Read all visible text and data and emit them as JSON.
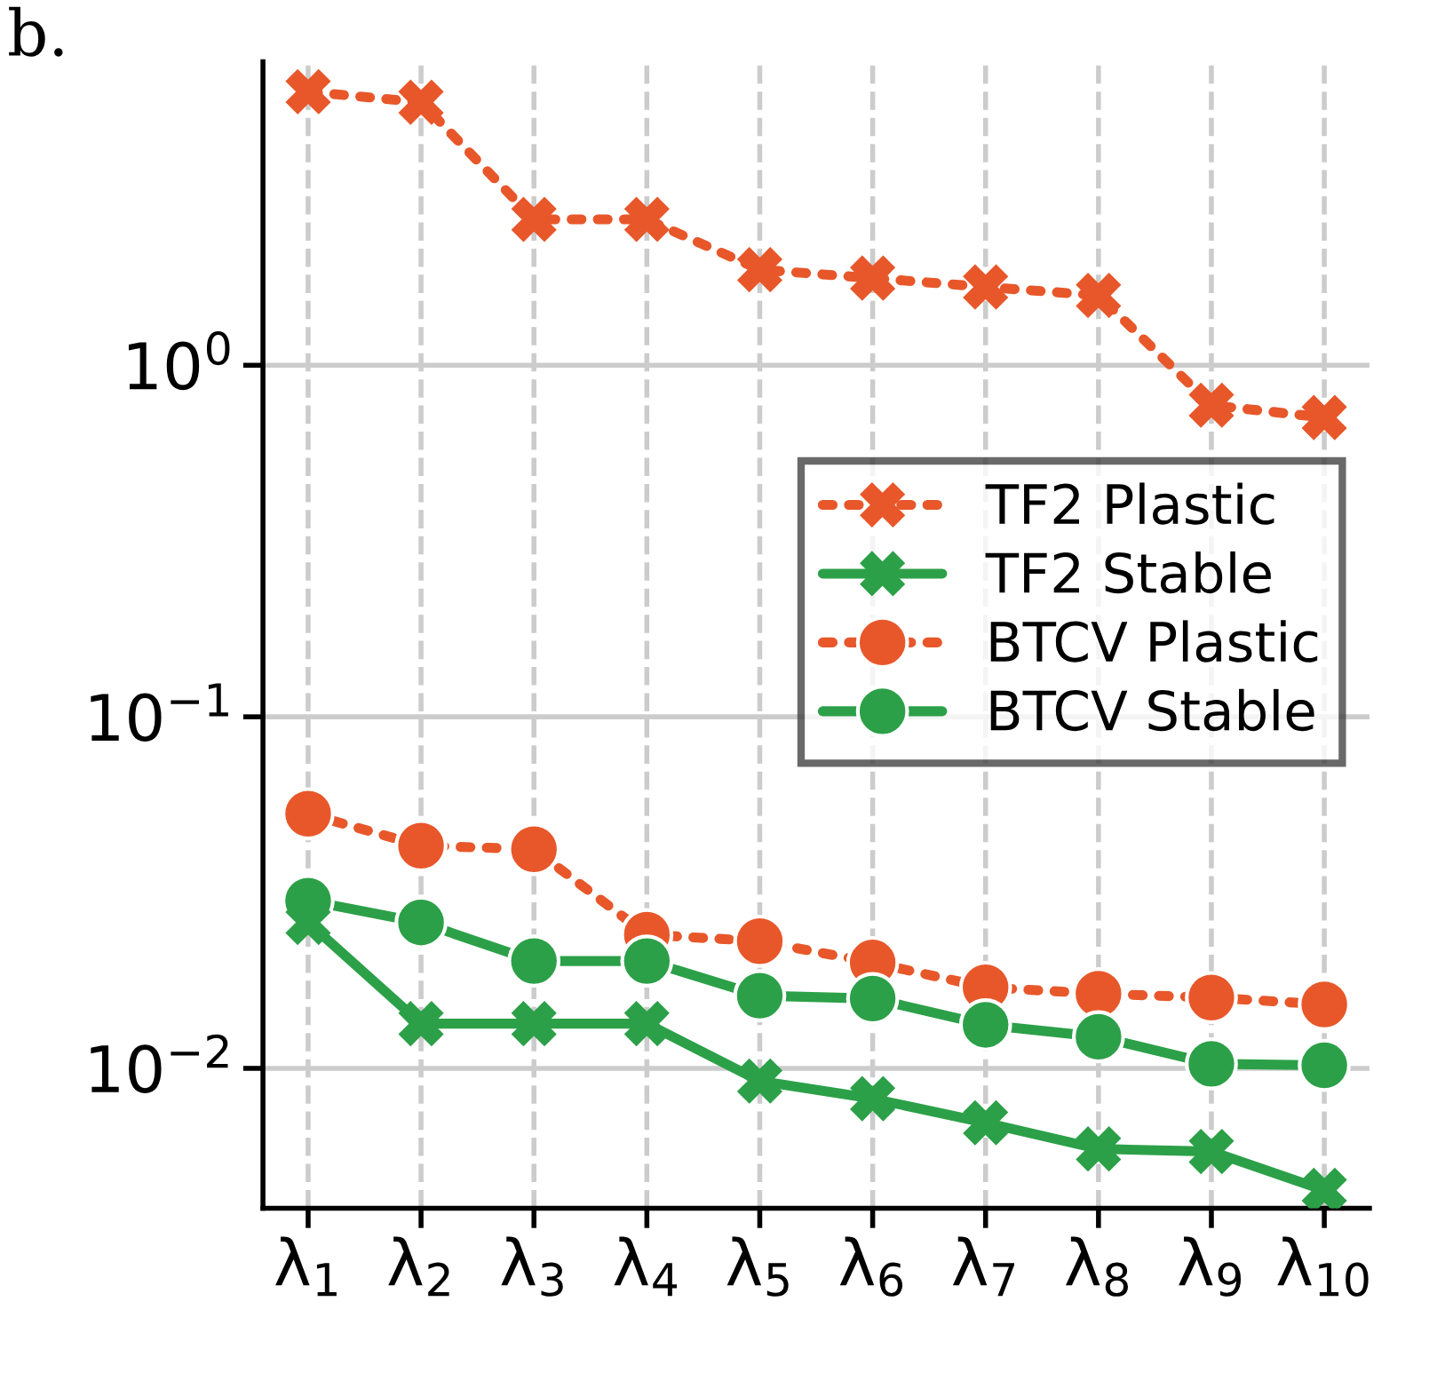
{
  "chart_data": {
    "type": "line",
    "annotations": [
      "b."
    ],
    "categories": [
      "λ$_{1}$",
      "λ$_{2}$",
      "λ$_{3}$",
      "λ$_{4}$",
      "λ$_{5}$",
      "λ$_{6}$",
      "λ$_{7}$",
      "λ$_{8}$",
      "λ$_{9}$",
      "λ$_{10}$"
    ],
    "series": [
      {
        "name": "TF2 Plastic",
        "color": "#e8572a",
        "marker": "cross",
        "line_style": "dotted",
        "values": [
          6.0,
          5.6,
          2.6,
          2.6,
          1.87,
          1.77,
          1.67,
          1.58,
          0.77,
          0.71
        ]
      },
      {
        "name": "TF2 Stable",
        "color": "#2ca048",
        "marker": "cross",
        "line_style": "solid",
        "values": [
          0.026,
          0.0134,
          0.0134,
          0.0134,
          0.0092,
          0.0082,
          0.007,
          0.0059,
          0.0058,
          0.0045
        ]
      },
      {
        "name": "BTCV Plastic",
        "color": "#e8572a",
        "marker": "circle",
        "line_style": "dotted",
        "values": [
          0.053,
          0.043,
          0.042,
          0.024,
          0.023,
          0.02,
          0.017,
          0.0163,
          0.0159,
          0.0152
        ]
      },
      {
        "name": "BTCV Stable",
        "color": "#2ca048",
        "marker": "circle",
        "line_style": "solid",
        "values": [
          0.03,
          0.026,
          0.0202,
          0.0202,
          0.0161,
          0.0158,
          0.0133,
          0.0123,
          0.0103,
          0.0102
        ]
      }
    ],
    "log": "y",
    "ylim": [
      0.004,
      7.3
    ],
    "yticks": [
      {
        "value": 0.01,
        "label": "10$^{−2}$"
      },
      {
        "value": 0.1,
        "label": "10$^{−1}$"
      },
      {
        "value": 1,
        "label": "10$^{0}$"
      }
    ],
    "grid": true,
    "legend": "right"
  }
}
